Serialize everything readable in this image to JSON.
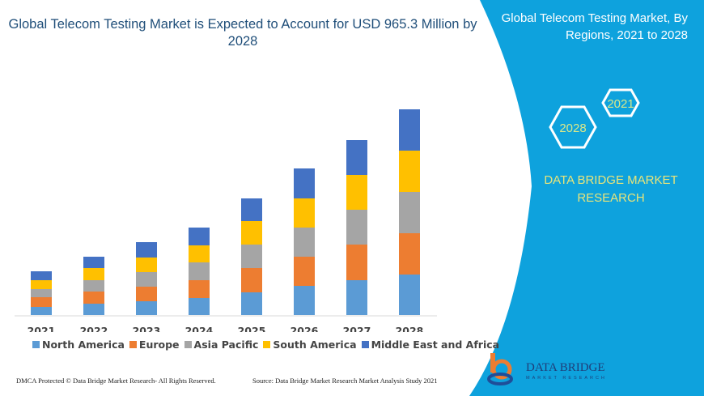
{
  "title": "Global Telecom Testing Market is Expected to Account for USD 965.3 Million by 2028",
  "right_panel": {
    "title": "Global Telecom Testing Market, By Regions, 2021 to 2028",
    "hex_small": "2021",
    "hex_large": "2028",
    "brand": "DATA BRIDGE MARKET RESEARCH",
    "logo_text": "DATA BRIDGE",
    "logo_sub": "MARKET RESEARCH",
    "color": "#0ea2dd"
  },
  "footer": {
    "left": "DMCA Protected © Data Bridge Market Research- All Rights Reserved.",
    "right": "Source: Data Bridge Market Research Market Analysis Study 2021"
  },
  "chart_data": {
    "type": "bar",
    "stacked": true,
    "categories": [
      "2021",
      "2022",
      "2023",
      "2024",
      "2025",
      "2026",
      "2027",
      "2028"
    ],
    "series": [
      {
        "name": "North America",
        "color": "#5b9bd5",
        "values": [
          10,
          14,
          17,
          21,
          28,
          36,
          43,
          50
        ]
      },
      {
        "name": "Europe",
        "color": "#ed7d31",
        "values": [
          12,
          15,
          18,
          22,
          30,
          36,
          44,
          51
        ]
      },
      {
        "name": "Asia Pacific",
        "color": "#a5a5a5",
        "values": [
          10,
          14,
          18,
          22,
          29,
          36,
          43,
          51
        ]
      },
      {
        "name": "South America",
        "color": "#ffc000",
        "values": [
          11,
          15,
          18,
          21,
          29,
          36,
          43,
          51
        ]
      },
      {
        "name": "Middle East and Africa",
        "color": "#4472c4",
        "values": [
          11,
          14,
          19,
          22,
          28,
          37,
          43,
          51
        ]
      }
    ],
    "legend_position": "bottom",
    "grid": false
  }
}
